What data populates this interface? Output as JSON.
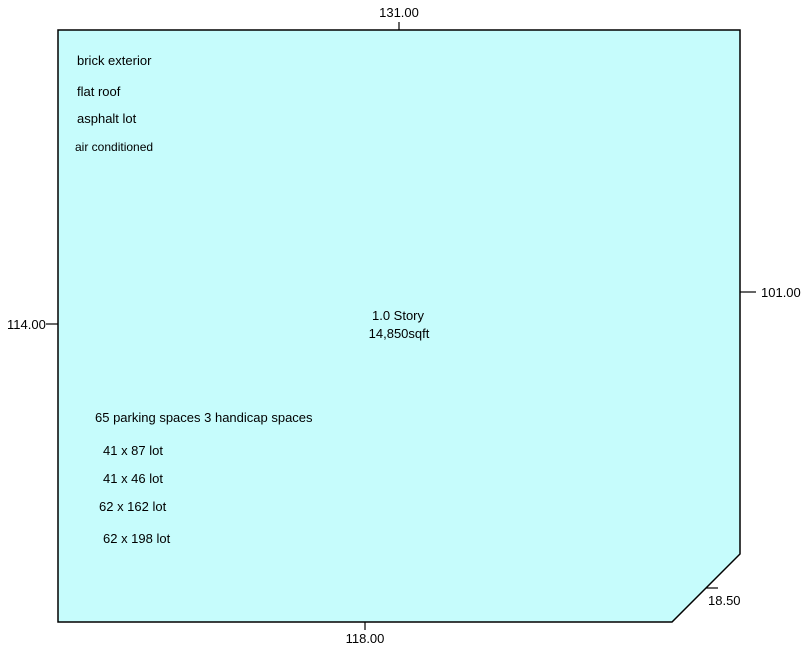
{
  "building": {
    "fill_color": "#c6fcfc",
    "outline_color": "#000000",
    "story": "1.0 Story",
    "area": "14,850sqft"
  },
  "dimensions": {
    "top": "131.00",
    "right": "101.00",
    "bottom": "118.00",
    "left": "114.00",
    "corner": "18.50"
  },
  "notes": {
    "exterior": "brick exterior",
    "roof": "flat roof",
    "lot": "asphalt lot",
    "hvac": "air conditioned",
    "parking": "65 parking spaces 3 handicap spaces",
    "lot_1": "41 x 87 lot",
    "lot_2": "41 x 46 lot",
    "lot_3": "62 x 162 lot",
    "lot_4": "62 x 198 lot"
  }
}
